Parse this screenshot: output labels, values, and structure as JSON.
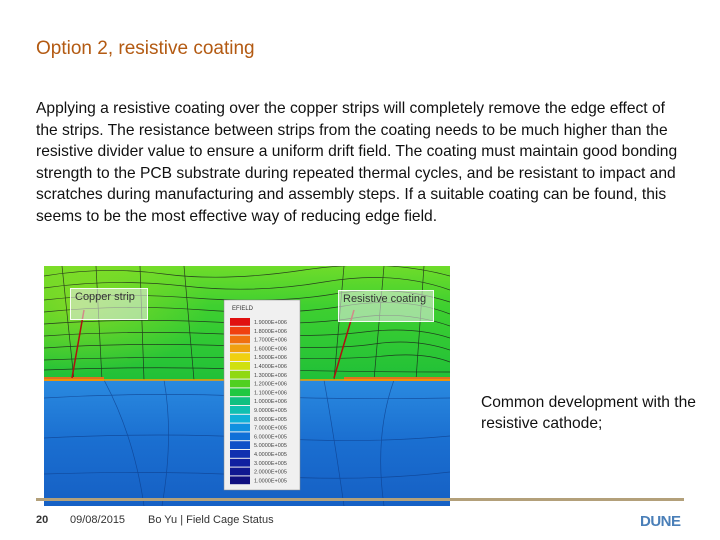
{
  "slide": {
    "title": "Option 2, resistive coating",
    "body": "Applying a resistive coating over the copper strips will completely remove the edge effect of the strips.  The resistance between strips from the coating needs to be much higher than the resistive divider value to ensure a uniform drift field.  The coating must maintain good bonding strength to the PCB substrate during repeated thermal cycles, and be resistant to impact and scratches during manufacturing and assembly steps.  If a suitable coating can be found, this seems to be the most effective way of reducing edge field.",
    "side_note": "Common development with the resistive cathode;"
  },
  "figure": {
    "callout_copper": "Copper strip",
    "callout_coating": "Resistive coating",
    "legend_header": "EFIELD",
    "legend_colors": [
      "#e01010",
      "#f04010",
      "#f07010",
      "#f0a010",
      "#f0d010",
      "#d0e010",
      "#90d810",
      "#50d020",
      "#20c840",
      "#10c080",
      "#10c0b0",
      "#10b0d8",
      "#1090e0",
      "#1070d8",
      "#1050c8",
      "#1030b0",
      "#1020a0",
      "#101890",
      "#101080"
    ],
    "legend_values": [
      "1.9000E+006",
      "1.8000E+006",
      "1.7000E+006",
      "1.6000E+006",
      "1.5000E+006",
      "1.4000E+006",
      "1.3000E+006",
      "1.2000E+006",
      "1.1000E+006",
      "1.0000E+006",
      "9.0000E+005",
      "8.0000E+005",
      "7.0000E+005",
      "6.0000E+005",
      "5.0000E+005",
      "4.0000E+005",
      "3.0000E+005",
      "2.0000E+005",
      "1.0000E+005"
    ]
  },
  "footer": {
    "page_number": "20",
    "date": "09/08/2015",
    "author_topic": "Bo Yu | Field Cage Status",
    "logo_text": "DUNE"
  },
  "colors": {
    "title": "#b35a12",
    "footer_rule": "#b3a07a",
    "field_green": "#22c830",
    "substrate_blue": "#1e6fd0"
  }
}
